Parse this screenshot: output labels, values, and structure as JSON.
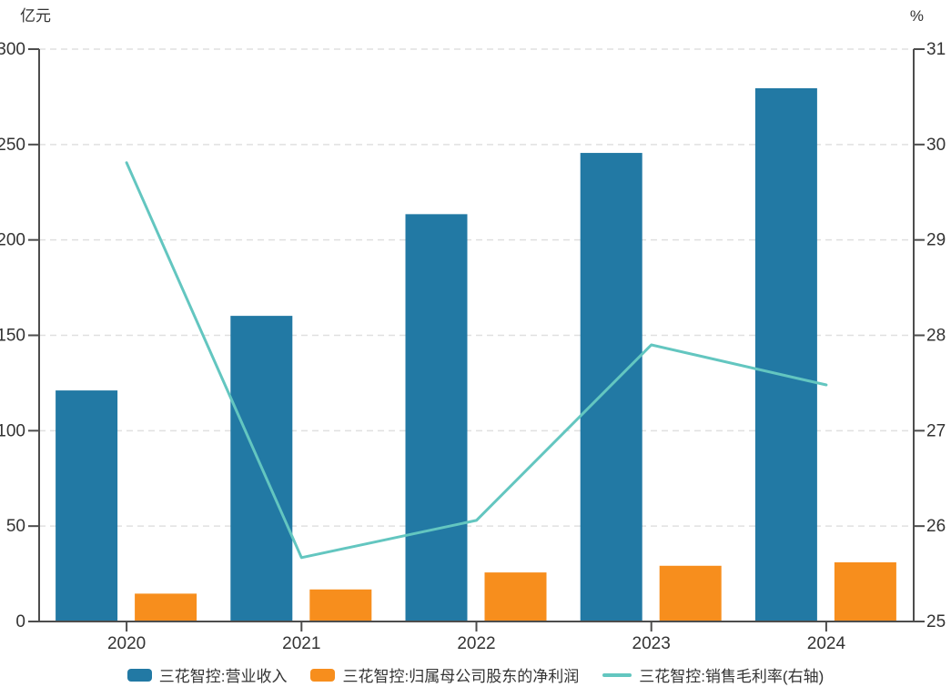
{
  "chart_data": {
    "type": "bar",
    "categories": [
      "2020",
      "2021",
      "2022",
      "2023",
      "2024"
    ],
    "series": [
      {
        "name": "三花智控:营业收入",
        "type": "bar",
        "axis": "left",
        "color": "#2279A4",
        "values": [
          121.1,
          160.2,
          213.5,
          245.6,
          279.5
        ]
      },
      {
        "name": "三花智控:归属母公司股东的净利润",
        "type": "bar",
        "axis": "left",
        "color": "#F78E1D",
        "values": [
          14.6,
          16.8,
          25.7,
          29.2,
          31.0
        ]
      },
      {
        "name": "三花智控:销售毛利率(右轴)",
        "type": "line",
        "axis": "right",
        "color": "#63C6C0",
        "values": [
          29.81,
          25.67,
          26.06,
          27.9,
          27.48
        ]
      }
    ],
    "left_axis": {
      "unit": "亿元",
      "min": 0,
      "max": 300,
      "ticks": [
        0,
        50,
        100,
        150,
        200,
        250,
        300
      ]
    },
    "right_axis": {
      "unit": "%",
      "min": 25,
      "max": 31,
      "ticks": [
        25,
        26,
        27,
        28,
        29,
        30,
        31
      ]
    },
    "title": "",
    "grid": "dashed-horizontal",
    "legend_position": "bottom",
    "colors": {
      "axis_line": "#4d4d4d",
      "grid_line": "#e0e0e0",
      "tick_text": "#333333"
    }
  }
}
